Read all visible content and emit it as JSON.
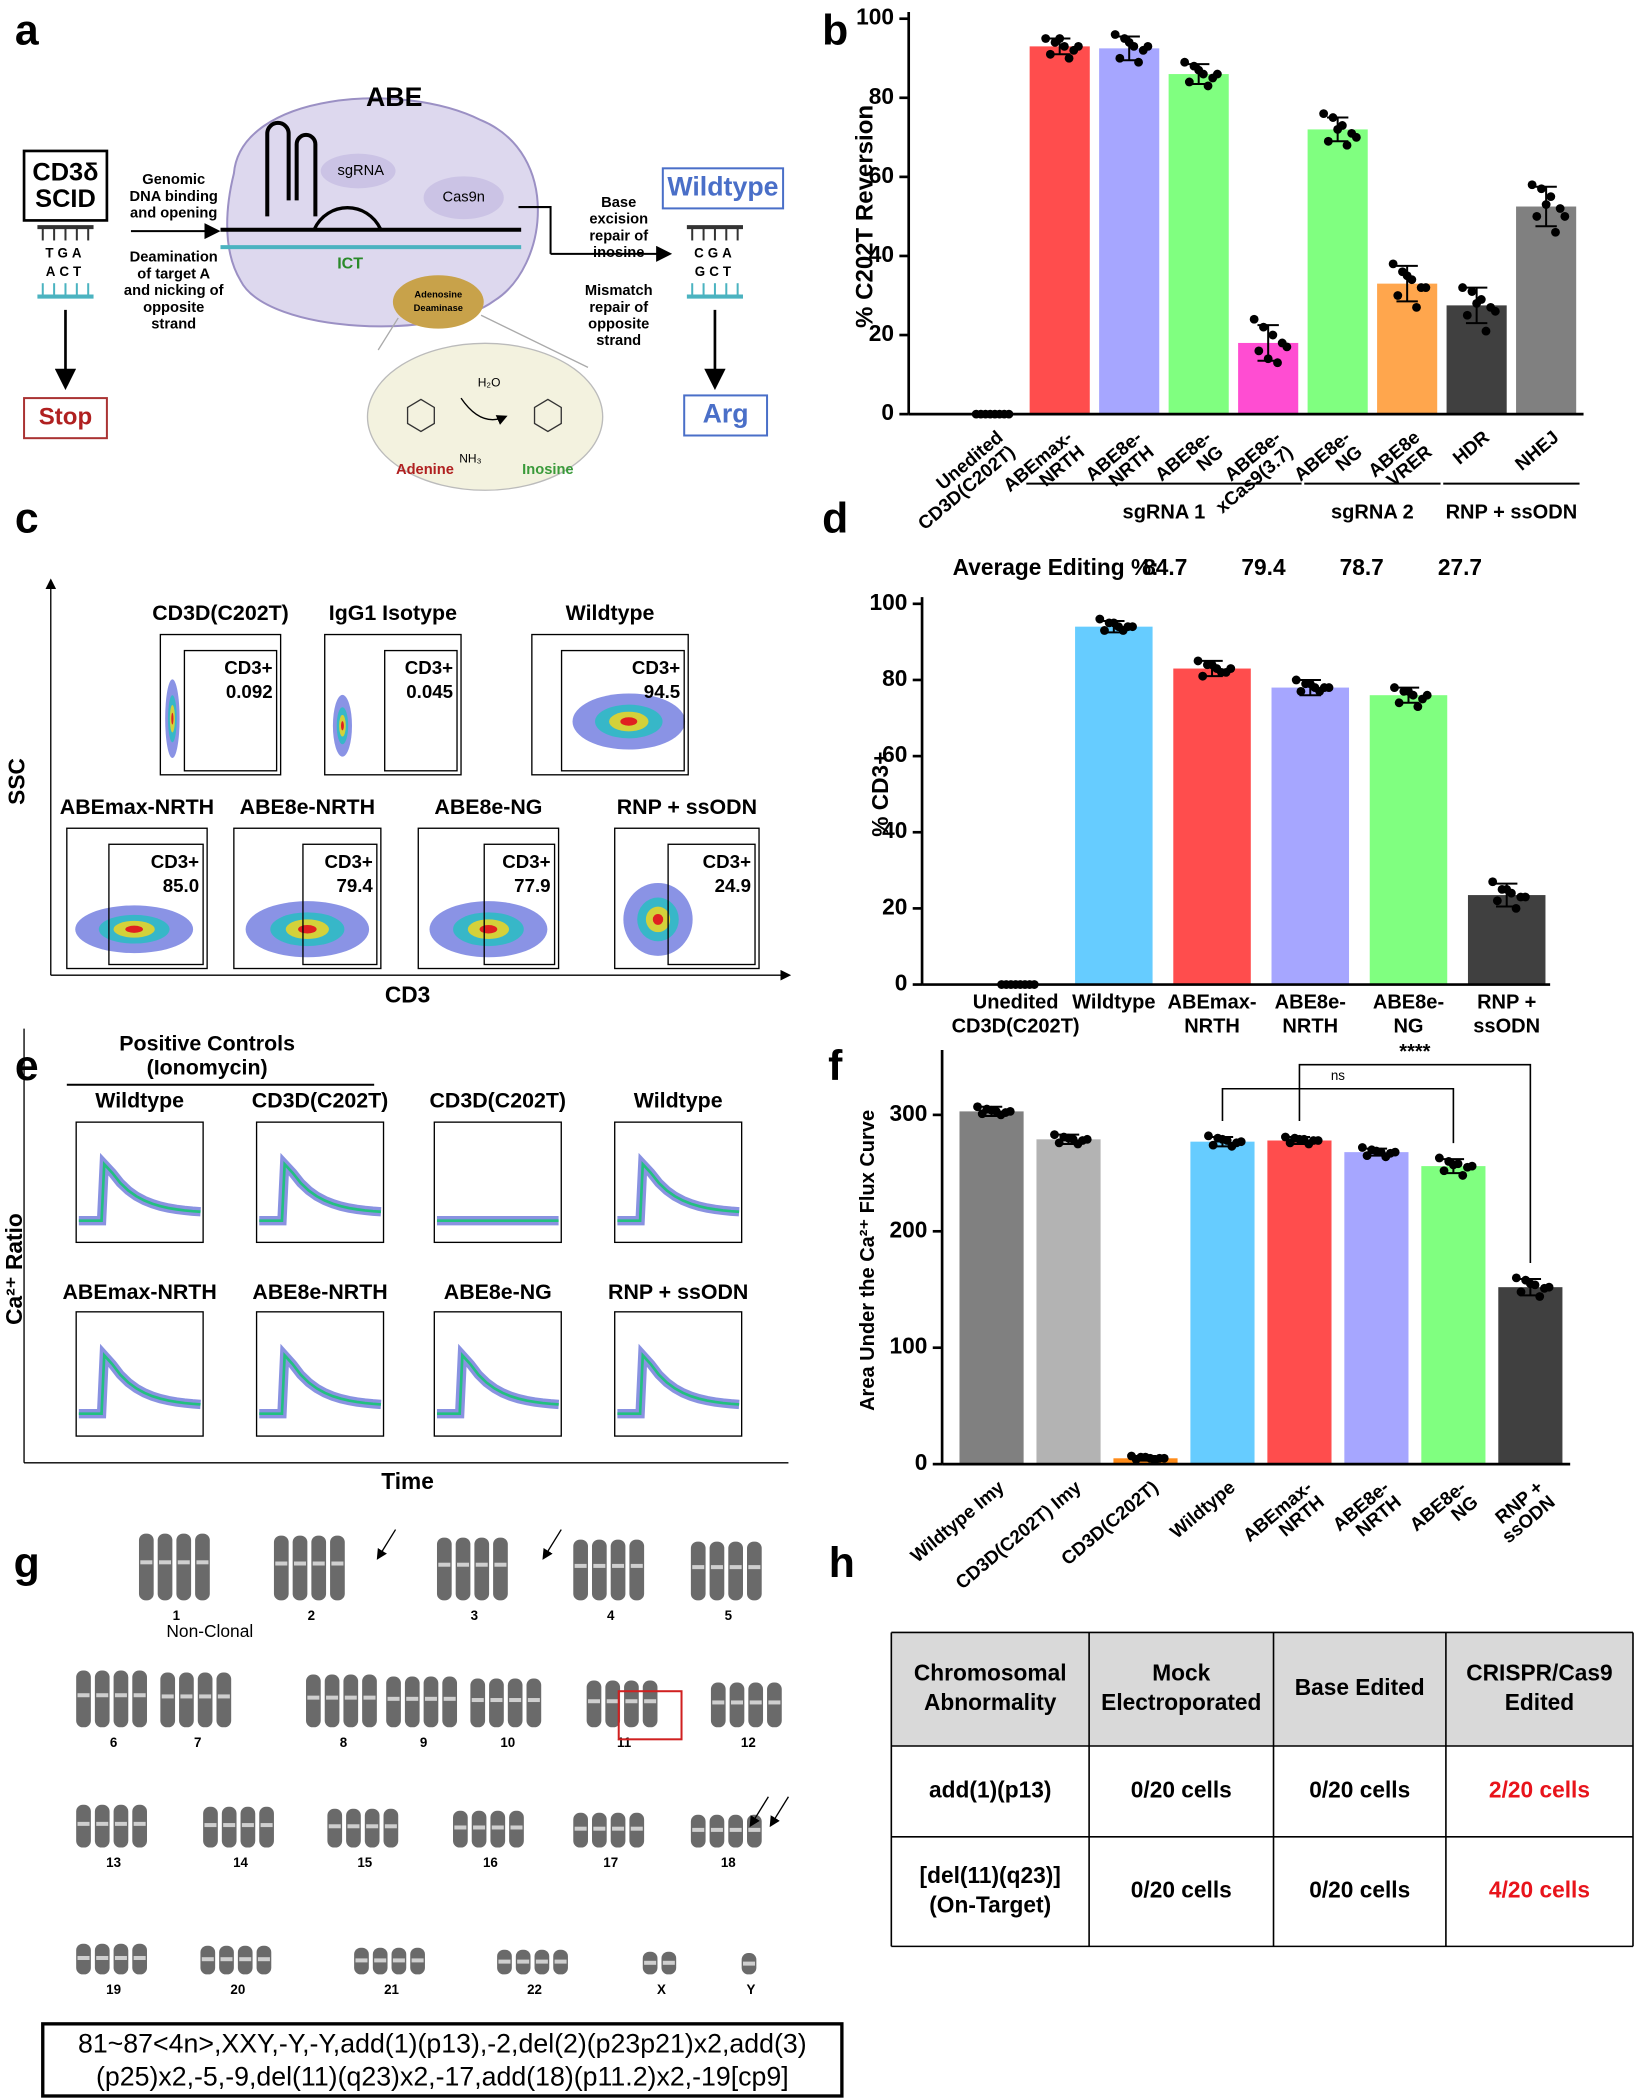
{
  "panel_labels": [
    "a",
    "b",
    "c",
    "d",
    "e",
    "f",
    "g",
    "h"
  ],
  "diagram": {
    "title": "ABE",
    "disease": [
      "CD3δ",
      "SCID"
    ],
    "mutant_top": "TGA",
    "mutant_bottom": "ACT",
    "stop": "Stop",
    "step1": [
      "Genomic",
      "DNA binding",
      "and opening"
    ],
    "step2": [
      "Deamination",
      "of target A",
      "and nicking of",
      "opposite",
      "strand"
    ],
    "sgrna": "sgRNA",
    "cas9n": "Cas9n",
    "ict": "ICT",
    "deaminase": [
      "Adenosine",
      "Deaminase"
    ],
    "water": "H₂O",
    "ammonia": "NH₃",
    "adenine": "Adenine",
    "inosine": "Inosine",
    "step3": [
      "Base",
      "excision",
      "repair of",
      "inosine"
    ],
    "step4": [
      "Mismatch",
      "repair of",
      "opposite",
      "strand"
    ],
    "wildtype": "Wildtype",
    "fixed_top": "CGA",
    "fixed_bottom": "GCT",
    "arg": "Arg"
  },
  "chart_data": [
    {
      "type": "bar",
      "y_label": "% C202T Reversion",
      "categories": [
        [
          "Unedited",
          "CD3D(C202T)"
        ],
        [
          "ABEmax-",
          "NRTH"
        ],
        [
          "ABE8e-",
          "NRTH"
        ],
        [
          "ABE8e-",
          "NG"
        ],
        [
          "ABE8e-",
          "xCas9(3.7)"
        ],
        [
          "ABE8e-",
          "NG"
        ],
        [
          "ABE8e",
          "VRER"
        ],
        [
          "HDR"
        ],
        [
          "NHEJ"
        ]
      ],
      "values": [
        0,
        93,
        92.5,
        86,
        18,
        72,
        33,
        27.5,
        52.5
      ],
      "errors": [
        0,
        2,
        3,
        2.5,
        4.5,
        3,
        4.5,
        4.5,
        5
      ],
      "points": [
        [
          0,
          0,
          0,
          0,
          0,
          0,
          0,
          0
        ],
        [
          95,
          94,
          93,
          92,
          91,
          95,
          90,
          93
        ],
        [
          96,
          95,
          93,
          92,
          90,
          94,
          89,
          93
        ],
        [
          89,
          88,
          86,
          85,
          84,
          87,
          83,
          86
        ],
        [
          24,
          22,
          20,
          18,
          16,
          14,
          13,
          17
        ],
        [
          76,
          75,
          73,
          71,
          69,
          72,
          68,
          70
        ],
        [
          38,
          36,
          34,
          32,
          30,
          35,
          27,
          32
        ],
        [
          32,
          31,
          29,
          27,
          25,
          28,
          21,
          26
        ],
        [
          58,
          57,
          55,
          52,
          50,
          53,
          46,
          50
        ]
      ],
      "colors": [
        "#808080",
        "#ff4d4d",
        "#a6a6ff",
        "#80ff80",
        "#ff4dd2",
        "#80ff80",
        "#ffa64d",
        "#404040",
        "#808080"
      ],
      "ylim": [
        0,
        100
      ],
      "yticks": [
        0,
        20,
        40,
        60,
        80,
        100
      ],
      "groups": [
        {
          "name": "sgRNA 1",
          "span": [
            1,
            4
          ]
        },
        {
          "name": "sgRNA 2",
          "span": [
            5,
            6
          ]
        },
        {
          "name": "RNP + ssODN",
          "span": [
            7,
            8
          ]
        }
      ]
    },
    {
      "type": "bar",
      "y_label": "% CD3+",
      "categories": [
        [
          "Unedited",
          "CD3D(C202T)"
        ],
        [
          "Wildtype"
        ],
        [
          "ABEmax-",
          "NRTH"
        ],
        [
          "ABE8e-",
          "NRTH"
        ],
        [
          "ABE8e-",
          "NG"
        ],
        [
          "RNP +",
          "ssODN"
        ]
      ],
      "values": [
        0,
        94,
        83,
        78,
        76,
        23.5
      ],
      "errors": [
        0,
        1.5,
        2,
        2,
        2,
        3
      ],
      "points": [
        [
          0,
          0,
          0,
          0,
          0,
          0,
          0,
          0
        ],
        [
          96,
          95,
          94,
          94,
          93,
          95,
          93,
          94
        ],
        [
          85,
          84,
          83,
          82,
          81,
          84,
          82,
          83
        ],
        [
          80,
          79,
          78,
          78,
          77,
          79,
          77,
          78
        ],
        [
          78,
          77,
          76,
          75,
          74,
          77,
          73,
          76
        ],
        [
          27,
          25,
          24,
          23,
          22,
          25,
          20,
          23
        ]
      ],
      "colors": [
        "#808080",
        "#66ccff",
        "#ff4d4d",
        "#a6a6ff",
        "#80ff80",
        "#404040"
      ],
      "ylim": [
        0,
        100
      ],
      "yticks": [
        0,
        20,
        40,
        60,
        80,
        100
      ],
      "average_editing": {
        "label": "Average Editing %:",
        "values": [
          null,
          null,
          84.7,
          79.4,
          78.7,
          27.7
        ]
      }
    },
    {
      "type": "bar",
      "y_label": "Area Under the Ca²⁺ Flux Curve",
      "categories": [
        [
          "Wildtype Imy"
        ],
        [
          "CD3D(C202T) Imy"
        ],
        [
          "CD3D(C202T)"
        ],
        [
          "Wildtype"
        ],
        [
          "ABEmax-",
          "NRTH"
        ],
        [
          "ABE8e-",
          "NRTH"
        ],
        [
          "ABE8e-",
          "NG"
        ],
        [
          "RNP +",
          "ssODN"
        ]
      ],
      "values": [
        303,
        279,
        5,
        277,
        278,
        268,
        256,
        152
      ],
      "errors": [
        4,
        4,
        2,
        4,
        3,
        3,
        6,
        7
      ],
      "points": [
        [
          307,
          305,
          303,
          302,
          301,
          304,
          300,
          303
        ],
        [
          283,
          281,
          279,
          278,
          276,
          280,
          275,
          279
        ],
        [
          7,
          6,
          5,
          5,
          4,
          6,
          3,
          5
        ],
        [
          282,
          280,
          278,
          276,
          274,
          279,
          273,
          277
        ],
        [
          281,
          280,
          279,
          278,
          276,
          279,
          275,
          278
        ],
        [
          272,
          270,
          268,
          267,
          265,
          269,
          264,
          268
        ],
        [
          263,
          260,
          258,
          255,
          252,
          257,
          248,
          256
        ],
        [
          160,
          158,
          154,
          151,
          148,
          155,
          144,
          152
        ]
      ],
      "colors": [
        "#808080",
        "#b3b3b3",
        "#ff8c1a",
        "#66ccff",
        "#ff4d4d",
        "#a6a6ff",
        "#80ff80",
        "#404040"
      ],
      "ylim": [
        0,
        350
      ],
      "yticks": [
        0,
        100,
        200,
        300
      ],
      "brackets": [
        {
          "label": "ns",
          "between": [
            3,
            6
          ]
        },
        {
          "label": "****",
          "between": [
            4,
            7
          ]
        }
      ]
    }
  ],
  "flow": {
    "y_label": "SSC",
    "x_label": "CD3",
    "gate": "CD3+",
    "plots": [
      {
        "title": "CD3D(C202T)",
        "value": "0.092"
      },
      {
        "title": "IgG1 Isotype",
        "value": "0.045"
      },
      {
        "title": "Wildtype",
        "value": "94.5"
      },
      {
        "title": "ABEmax-NRTH",
        "value": "85.0"
      },
      {
        "title": "ABE8e-NRTH",
        "value": "79.4"
      },
      {
        "title": "ABE8e-NG",
        "value": "77.9"
      },
      {
        "title": "RNP + ssODN",
        "value": "24.9"
      }
    ]
  },
  "calcium": {
    "control_title": [
      "Positive Controls",
      "(Ionomycin)"
    ],
    "y_label": "Ca²⁺ Ratio",
    "x_label": "Time",
    "plots": [
      "Wildtype",
      "CD3D(C202T)",
      "CD3D(C202T)",
      "Wildtype",
      "ABEmax-NRTH",
      "ABE8e-NRTH",
      "ABE8e-NG",
      "RNP + ssODN"
    ]
  },
  "karyotype": {
    "labels": [
      "1",
      "2",
      "3",
      "4",
      "5",
      "6",
      "7",
      "8",
      "9",
      "10",
      "11",
      "12",
      "13",
      "14",
      "15",
      "16",
      "17",
      "18",
      "19",
      "20",
      "21",
      "22",
      "X",
      "Y"
    ],
    "note": "Non-Clonal",
    "iscn": [
      "81~87<4n>,XXY,-Y,-Y,add(1)(p13),-2,del(2)(p23p21)x2,add(3)",
      "(p25)x2,-5,-9,del(11)(q23)x2,-17,add(18)(p11.2)x2,-19[cp9]"
    ]
  },
  "table": {
    "header": [
      [
        "Chromosomal",
        "Abnormality"
      ],
      [
        "Mock",
        "Electroporated"
      ],
      [
        "Base Edited"
      ],
      [
        "CRISPR/Cas9",
        "Edited"
      ]
    ],
    "rows": [
      [
        [
          "add(1)(p13)"
        ],
        [
          "0/20 cells"
        ],
        [
          "0/20 cells"
        ],
        [
          "2/20 cells"
        ]
      ],
      [
        [
          "[del(11)(q23)]",
          "(On-Target)"
        ],
        [
          "0/20 cells"
        ],
        [
          "0/20 cells"
        ],
        [
          "4/20 cells"
        ]
      ]
    ]
  }
}
